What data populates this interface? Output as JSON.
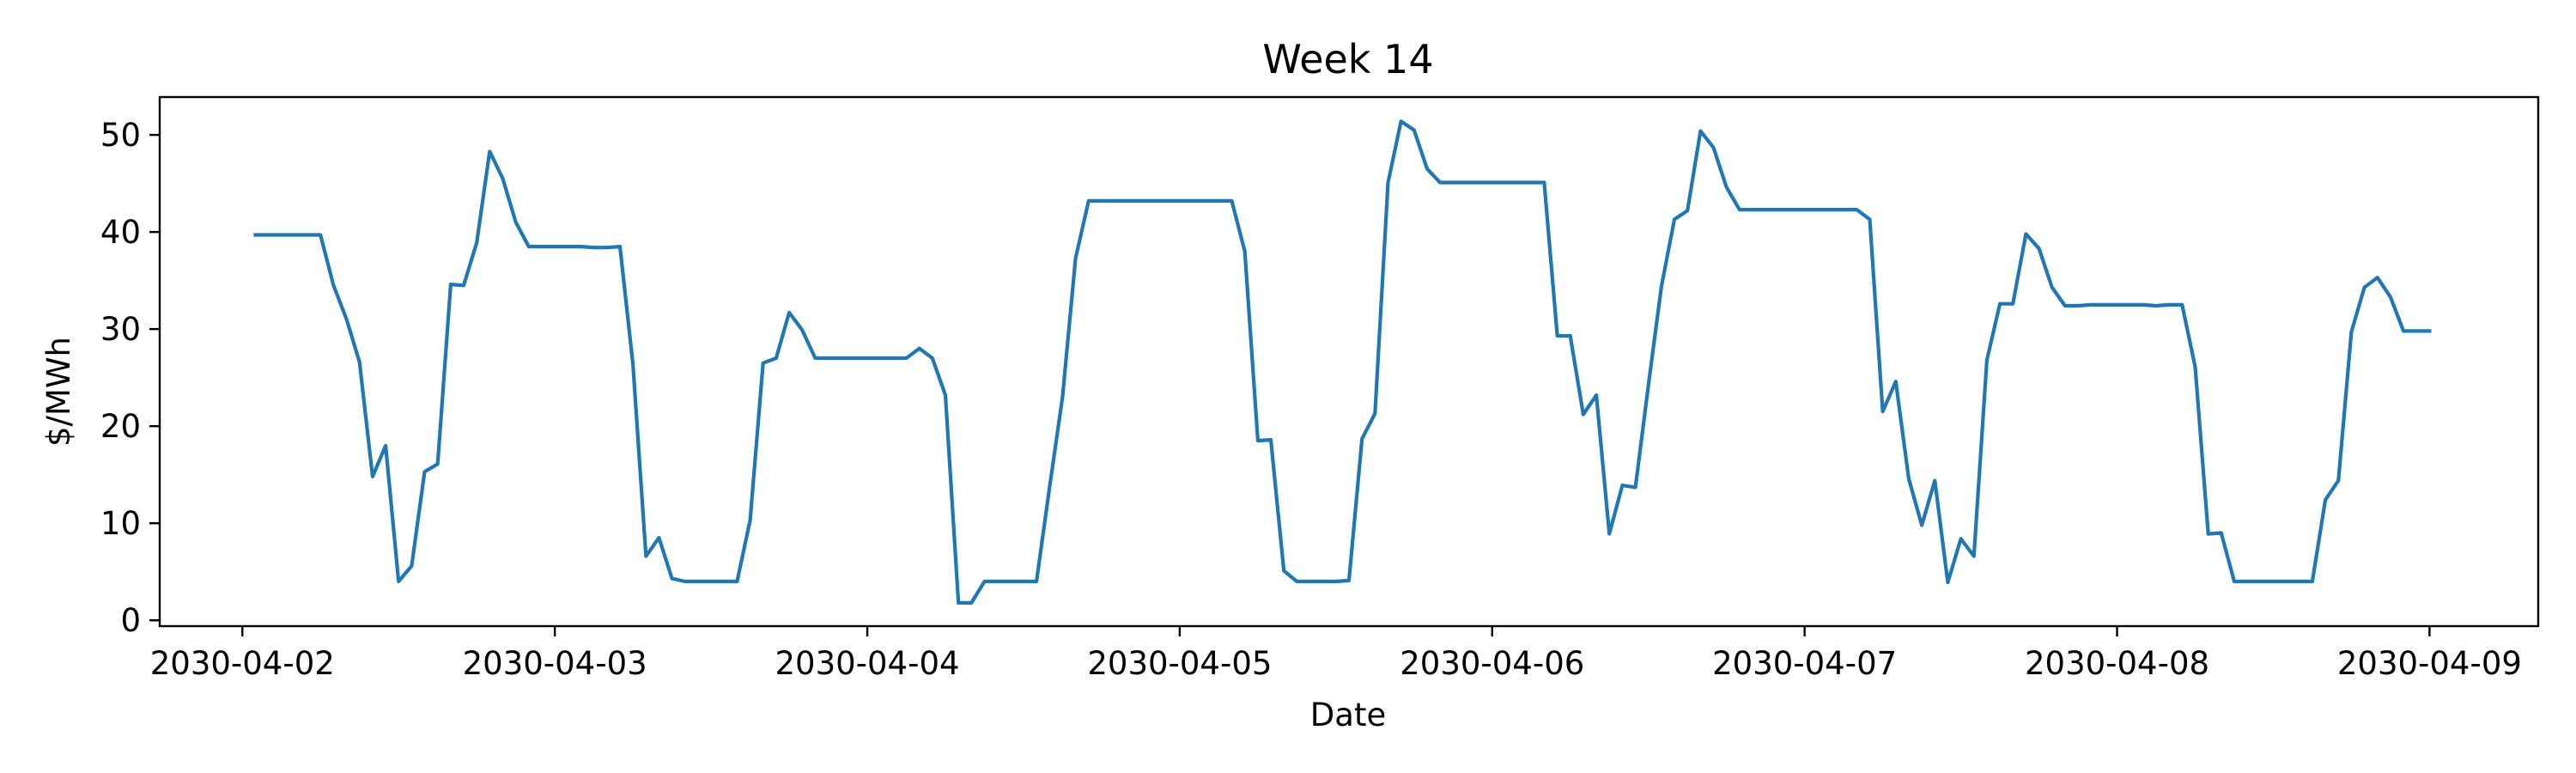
{
  "chart_data": {
    "type": "line",
    "title": "Week 14",
    "xlabel": "Date",
    "ylabel": "$/MWh",
    "xlim": [
      "2030-04-01T17:39",
      "2030-04-09T08:21"
    ],
    "ylim": [
      -0.6,
      53.9
    ],
    "grid": false,
    "x_ticks": [
      "2030-04-02",
      "2030-04-03",
      "2030-04-04",
      "2030-04-05",
      "2030-04-06",
      "2030-04-07",
      "2030-04-08",
      "2030-04-09"
    ],
    "y_ticks": [
      0,
      10,
      20,
      30,
      40,
      50
    ],
    "series": [
      {
        "color": "#1f77b4",
        "x": [
          "2030-04-02T01:00",
          "2030-04-02T02:00",
          "2030-04-02T03:00",
          "2030-04-02T04:00",
          "2030-04-02T05:00",
          "2030-04-02T06:00",
          "2030-04-02T07:00",
          "2030-04-02T08:00",
          "2030-04-02T09:00",
          "2030-04-02T10:00",
          "2030-04-02T11:00",
          "2030-04-02T12:00",
          "2030-04-02T13:00",
          "2030-04-02T14:00",
          "2030-04-02T15:00",
          "2030-04-02T16:00",
          "2030-04-02T17:00",
          "2030-04-02T18:00",
          "2030-04-02T19:00",
          "2030-04-02T20:00",
          "2030-04-02T21:00",
          "2030-04-02T22:00",
          "2030-04-02T23:00",
          "2030-04-03T00:00",
          "2030-04-03T01:00",
          "2030-04-03T02:00",
          "2030-04-03T03:00",
          "2030-04-03T04:00",
          "2030-04-03T05:00",
          "2030-04-03T06:00",
          "2030-04-03T07:00",
          "2030-04-03T08:00",
          "2030-04-03T09:00",
          "2030-04-03T10:00",
          "2030-04-03T11:00",
          "2030-04-03T12:00",
          "2030-04-03T13:00",
          "2030-04-03T14:00",
          "2030-04-03T15:00",
          "2030-04-03T16:00",
          "2030-04-03T17:00",
          "2030-04-03T18:00",
          "2030-04-03T19:00",
          "2030-04-03T20:00",
          "2030-04-03T21:00",
          "2030-04-03T22:00",
          "2030-04-03T23:00",
          "2030-04-04T00:00",
          "2030-04-04T01:00",
          "2030-04-04T02:00",
          "2030-04-04T03:00",
          "2030-04-04T04:00",
          "2030-04-04T05:00",
          "2030-04-04T06:00",
          "2030-04-04T07:00",
          "2030-04-04T08:00",
          "2030-04-04T09:00",
          "2030-04-04T10:00",
          "2030-04-04T11:00",
          "2030-04-04T12:00",
          "2030-04-04T13:00",
          "2030-04-04T14:00",
          "2030-04-04T15:00",
          "2030-04-04T16:00",
          "2030-04-04T17:00",
          "2030-04-04T18:00",
          "2030-04-04T19:00",
          "2030-04-04T20:00",
          "2030-04-04T21:00",
          "2030-04-04T22:00",
          "2030-04-04T23:00",
          "2030-04-05T00:00",
          "2030-04-05T01:00",
          "2030-04-05T02:00",
          "2030-04-05T03:00",
          "2030-04-05T04:00",
          "2030-04-05T05:00",
          "2030-04-05T06:00",
          "2030-04-05T07:00",
          "2030-04-05T08:00",
          "2030-04-05T09:00",
          "2030-04-05T10:00",
          "2030-04-05T11:00",
          "2030-04-05T12:00",
          "2030-04-05T13:00",
          "2030-04-05T14:00",
          "2030-04-05T15:00",
          "2030-04-05T16:00",
          "2030-04-05T17:00",
          "2030-04-05T18:00",
          "2030-04-05T19:00",
          "2030-04-05T20:00",
          "2030-04-05T21:00",
          "2030-04-05T22:00",
          "2030-04-05T23:00",
          "2030-04-06T00:00",
          "2030-04-06T01:00",
          "2030-04-06T02:00",
          "2030-04-06T03:00",
          "2030-04-06T04:00",
          "2030-04-06T05:00",
          "2030-04-06T06:00",
          "2030-04-06T07:00",
          "2030-04-06T08:00",
          "2030-04-06T09:00",
          "2030-04-06T10:00",
          "2030-04-06T11:00",
          "2030-04-06T12:00",
          "2030-04-06T13:00",
          "2030-04-06T14:00",
          "2030-04-06T15:00",
          "2030-04-06T16:00",
          "2030-04-06T17:00",
          "2030-04-06T18:00",
          "2030-04-06T19:00",
          "2030-04-06T20:00",
          "2030-04-06T21:00",
          "2030-04-06T22:00",
          "2030-04-06T23:00",
          "2030-04-07T00:00",
          "2030-04-07T01:00",
          "2030-04-07T02:00",
          "2030-04-07T03:00",
          "2030-04-07T04:00",
          "2030-04-07T05:00",
          "2030-04-07T06:00",
          "2030-04-07T07:00",
          "2030-04-07T08:00",
          "2030-04-07T09:00",
          "2030-04-07T10:00",
          "2030-04-07T11:00",
          "2030-04-07T12:00",
          "2030-04-07T13:00",
          "2030-04-07T14:00",
          "2030-04-07T15:00",
          "2030-04-07T16:00",
          "2030-04-07T17:00",
          "2030-04-07T18:00",
          "2030-04-07T19:00",
          "2030-04-07T20:00",
          "2030-04-07T21:00",
          "2030-04-07T22:00",
          "2030-04-07T23:00",
          "2030-04-08T00:00",
          "2030-04-08T01:00",
          "2030-04-08T02:00",
          "2030-04-08T03:00",
          "2030-04-08T04:00",
          "2030-04-08T05:00",
          "2030-04-08T06:00",
          "2030-04-08T07:00",
          "2030-04-08T08:00",
          "2030-04-08T09:00",
          "2030-04-08T10:00",
          "2030-04-08T11:00",
          "2030-04-08T12:00",
          "2030-04-08T13:00",
          "2030-04-08T14:00",
          "2030-04-08T15:00",
          "2030-04-08T16:00",
          "2030-04-08T17:00",
          "2030-04-08T18:00",
          "2030-04-08T19:00",
          "2030-04-08T20:00",
          "2030-04-08T21:00",
          "2030-04-08T22:00",
          "2030-04-08T23:00",
          "2030-04-09T00:00"
        ],
        "values": [
          39.7,
          39.7,
          39.7,
          39.7,
          39.7,
          39.7,
          34.5,
          31.0,
          26.6,
          14.8,
          18.0,
          4.0,
          5.6,
          15.3,
          16.1,
          34.6,
          34.5,
          38.9,
          48.3,
          45.5,
          41.0,
          38.5,
          38.5,
          38.5,
          38.5,
          38.5,
          38.4,
          38.4,
          38.5,
          26.4,
          6.6,
          8.5,
          4.3,
          4.0,
          4.0,
          4.0,
          4.0,
          4.0,
          10.3,
          26.5,
          27.0,
          31.7,
          29.9,
          27.0,
          27.0,
          27.0,
          27.0,
          27.0,
          27.0,
          27.0,
          27.0,
          28.0,
          27.0,
          23.2,
          1.8,
          1.8,
          4.0,
          4.0,
          4.0,
          4.0,
          4.0,
          13.7,
          23.0,
          37.3,
          43.2,
          43.2,
          43.2,
          43.2,
          43.2,
          43.2,
          43.2,
          43.2,
          43.2,
          43.2,
          43.2,
          43.2,
          38.0,
          18.5,
          18.6,
          5.1,
          4.0,
          4.0,
          4.0,
          4.0,
          4.1,
          18.7,
          21.3,
          45.1,
          51.4,
          50.5,
          46.5,
          45.1,
          45.1,
          45.1,
          45.1,
          45.1,
          45.1,
          45.1,
          45.1,
          45.1,
          29.3,
          29.3,
          21.2,
          23.2,
          8.9,
          13.9,
          13.7,
          24.2,
          34.4,
          41.3,
          42.2,
          50.4,
          48.7,
          44.6,
          42.3,
          42.3,
          42.3,
          42.3,
          42.3,
          42.3,
          42.3,
          42.3,
          42.3,
          42.3,
          41.3,
          21.5,
          24.6,
          14.6,
          9.8,
          14.4,
          3.9,
          8.4,
          6.6,
          26.8,
          32.6,
          32.6,
          39.8,
          38.3,
          34.3,
          32.4,
          32.4,
          32.5,
          32.5,
          32.5,
          32.5,
          32.5,
          32.4,
          32.5,
          32.5,
          26.1,
          8.9,
          9.0,
          4.0,
          4.0,
          4.0,
          4.0,
          4.0,
          4.0,
          4.0,
          12.4,
          14.4,
          29.7,
          34.3,
          35.3,
          33.3,
          29.8,
          29.8,
          29.8
        ]
      }
    ]
  }
}
